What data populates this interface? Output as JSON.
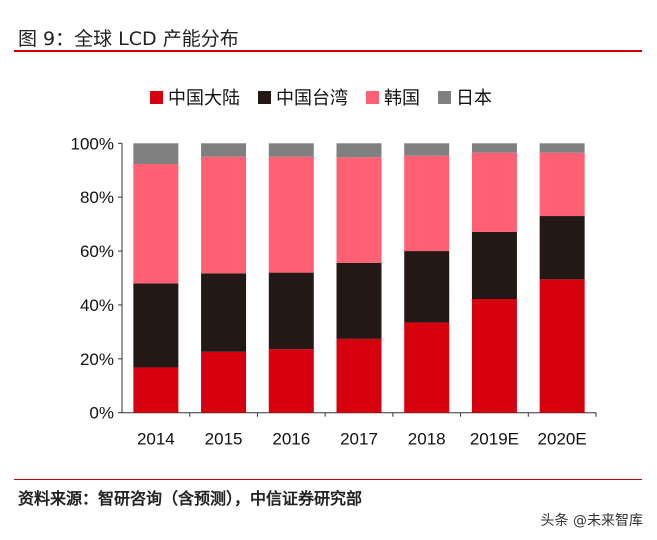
{
  "title": "图 9：全球 LCD 产能分布",
  "source": "资料来源：智研咨询（含预测），中信证券研究部",
  "watermark": "头条 @未来智库",
  "chart_data": {
    "type": "bar",
    "stacked": true,
    "categories": [
      "2014",
      "2015",
      "2016",
      "2017",
      "2018",
      "2019E",
      "2020E"
    ],
    "series": [
      {
        "name": "中国大陆",
        "color": "#d7000f",
        "values": [
          16.8,
          22.6,
          23.6,
          27.4,
          33.5,
          42.2,
          49.5
        ]
      },
      {
        "name": "中国台湾",
        "color": "#231815",
        "values": [
          31.2,
          29.1,
          28.4,
          28.2,
          26.5,
          24.9,
          23.5
        ]
      },
      {
        "name": "韩国",
        "color": "#ff6074",
        "values": [
          44.3,
          43.3,
          43.0,
          39.2,
          35.4,
          29.4,
          23.5
        ]
      },
      {
        "name": "日本",
        "color": "#808080",
        "values": [
          7.7,
          5.0,
          5.0,
          5.2,
          4.6,
          3.5,
          3.5
        ]
      }
    ],
    "yticks": [
      "0%",
      "20%",
      "40%",
      "60%",
      "80%",
      "100%"
    ],
    "ylim": [
      0,
      100
    ],
    "legend": "top",
    "grid": false
  }
}
